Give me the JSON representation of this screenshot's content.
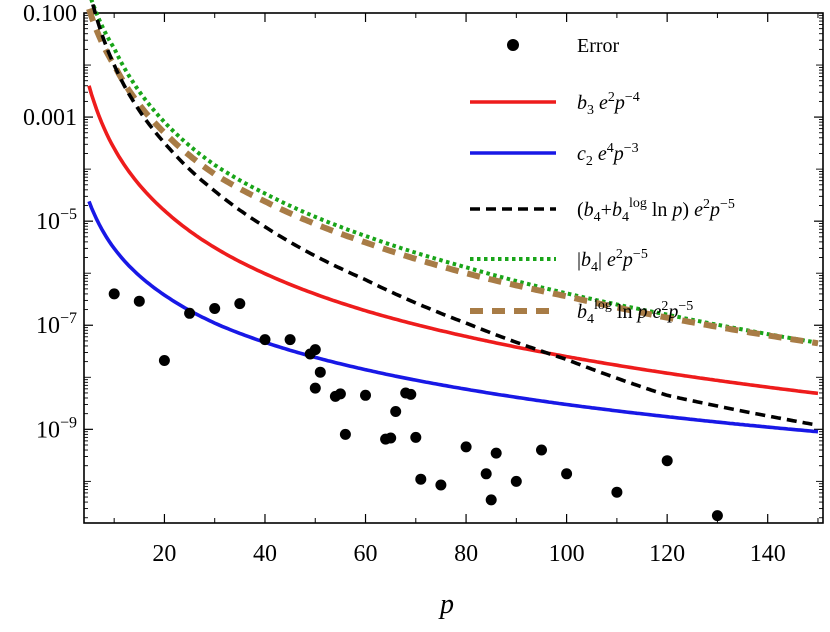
{
  "chart_data": {
    "type": "scatter",
    "title": "",
    "xlabel": "p",
    "ylabel": "",
    "xlim": [
      4,
      151
    ],
    "ylim_log10": [
      -10.8,
      -1
    ],
    "yscale": "log",
    "grid": false,
    "legend_position": "top-right",
    "x_ticks": [
      20,
      40,
      60,
      80,
      100,
      120,
      140
    ],
    "x_tick_labels": [
      "20",
      "40",
      "60",
      "80",
      "100",
      "120",
      "140"
    ],
    "y_ticks_log10": [
      -1,
      -3,
      -5,
      -7,
      -9
    ],
    "y_tick_labels": [
      {
        "kind": "plain",
        "text": "0.100"
      },
      {
        "kind": "plain",
        "text": "0.001"
      },
      {
        "kind": "pow",
        "base": "10",
        "exp": "−5"
      },
      {
        "kind": "pow",
        "base": "10",
        "exp": "−7"
      },
      {
        "kind": "pow",
        "base": "10",
        "exp": "−9"
      }
    ],
    "series": [
      {
        "name": "Error",
        "kind": "points",
        "color": "#000000",
        "points": [
          [
            10,
            4e-07
          ],
          [
            15,
            2.9e-07
          ],
          [
            20,
            2.1e-08
          ],
          [
            25,
            1.7e-07
          ],
          [
            30,
            2.1e-07
          ],
          [
            35,
            2.6e-07
          ],
          [
            40,
            5.3e-08
          ],
          [
            45,
            5.3e-08
          ],
          [
            49,
            2.8e-08
          ],
          [
            50,
            6.2e-09
          ],
          [
            50,
            3.4e-08
          ],
          [
            51,
            1.25e-08
          ],
          [
            54,
            4.3e-09
          ],
          [
            55,
            4.8e-09
          ],
          [
            56,
            8e-10
          ],
          [
            60,
            4.5e-09
          ],
          [
            64,
            6.5e-10
          ],
          [
            65,
            6.8e-10
          ],
          [
            66,
            2.2e-09
          ],
          [
            68,
            5e-09
          ],
          [
            69,
            4.7e-09
          ],
          [
            70,
            7e-10
          ],
          [
            71,
            1.1e-10
          ],
          [
            75,
            8.5e-11
          ],
          [
            80,
            4.6e-10
          ],
          [
            84,
            1.4e-10
          ],
          [
            85,
            4.4e-11
          ],
          [
            86,
            3.5e-10
          ],
          [
            90,
            1e-10
          ],
          [
            95,
            4e-10
          ],
          [
            100,
            1.4e-10
          ],
          [
            110,
            6.2e-11
          ],
          [
            120,
            2.5e-10
          ],
          [
            130,
            2.2e-11
          ]
        ]
      },
      {
        "name": "b3 e^2 p^-4",
        "kind": "line",
        "color": "#ee1c1c",
        "dash": "solid",
        "x": [
          5,
          10,
          20,
          30,
          40,
          60,
          80,
          100,
          120,
          150
        ],
        "y": [
          0.004,
          0.00025,
          1.6e-05,
          3.1e-06,
          9.8e-07,
          1.9e-07,
          6.1e-08,
          2.5e-08,
          1.2e-08,
          4.9e-09
        ]
      },
      {
        "name": "c2 e^4 p^-3",
        "kind": "line",
        "color": "#1818e6",
        "dash": "solid",
        "x": [
          5,
          10,
          20,
          30,
          40,
          60,
          80,
          100,
          120,
          150
        ],
        "y": [
          2.4e-05,
          3e-06,
          3.8e-07,
          1.1e-07,
          4.7e-08,
          1.4e-08,
          5.9e-09,
          3e-09,
          1.75e-09,
          9e-10
        ]
      },
      {
        "name": "(b4+b4^log ln p) e^2 p^-5",
        "kind": "line",
        "color": "#000000",
        "dash": "dashed",
        "x": [
          5,
          10,
          20,
          30,
          40,
          60,
          80,
          100,
          120,
          150
        ],
        "y": [
          0.29,
          0.01,
          0.00032,
          3.8e-05,
          7.8e-06,
          7.5e-07,
          1.1e-07,
          2.2e-08,
          4.5e-09,
          1.2e-09
        ]
      },
      {
        "name": "|b4| e^2 p^-5",
        "kind": "line",
        "color": "#19a519",
        "dash": "dotted",
        "x": [
          5,
          10,
          20,
          30,
          40,
          60,
          80,
          100,
          120,
          150
        ],
        "y": [
          0.25,
          0.021,
          0.0008,
          0.00012,
          3.4e-05,
          5.2e-06,
          1.3e-06,
          4.1e-07,
          1.6e-07,
          4.6e-08
        ]
      },
      {
        "name": "b4^log ln p e^2 p^-5",
        "kind": "line",
        "color": "#a87c46",
        "dash": "thick-dashed",
        "x": [
          5,
          10,
          20,
          30,
          40,
          60,
          80,
          100,
          120,
          150
        ],
        "y": [
          0.12,
          0.01,
          0.0005,
          8e-05,
          2.4e-05,
          3.9e-06,
          1e-06,
          3.6e-07,
          1.4e-07,
          4.5e-08
        ]
      }
    ]
  }
}
